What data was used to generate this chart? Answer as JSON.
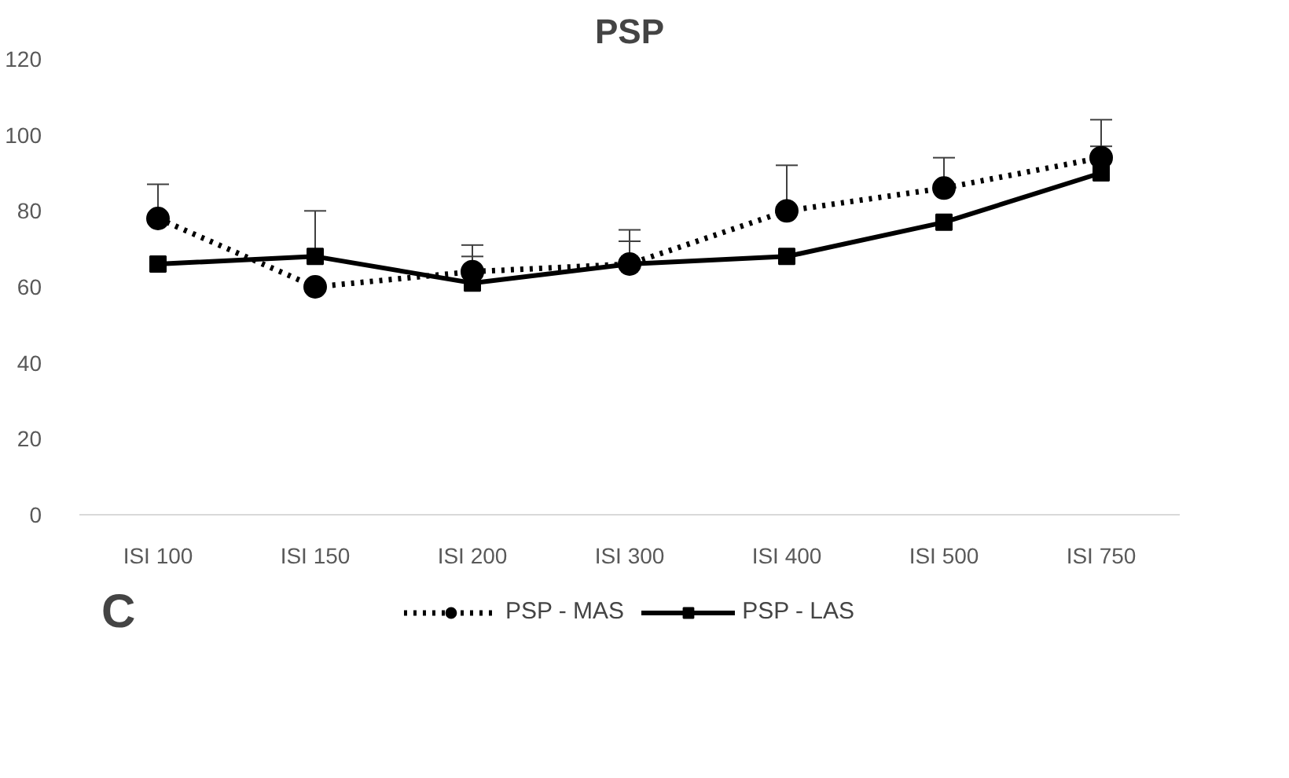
{
  "chart_data": {
    "type": "line",
    "title": "PSP",
    "categories": [
      "ISI 100",
      "ISI 150",
      "ISI 200",
      "ISI 300",
      "ISI 400",
      "ISI 500",
      "ISI 750"
    ],
    "series": [
      {
        "name": "PSP - MAS",
        "color": "#000000",
        "line_style": "dotted",
        "marker": "circle",
        "values": [
          78,
          60,
          64,
          66,
          80,
          86,
          94
        ],
        "errors": [
          [
            78,
            87
          ],
          null,
          [
            64,
            71
          ],
          [
            66,
            75
          ],
          [
            80,
            92
          ],
          [
            86,
            94
          ],
          [
            94,
            104
          ]
        ]
      },
      {
        "name": "PSP - LAS",
        "color": "#000000",
        "line_style": "solid",
        "marker": "square",
        "values": [
          66,
          68,
          61,
          66,
          68,
          77,
          90
        ],
        "errors": [
          null,
          [
            68,
            80
          ],
          [
            61,
            68
          ],
          [
            66,
            72
          ],
          null,
          null,
          [
            90,
            97
          ]
        ]
      }
    ],
    "ylim": [
      0,
      120
    ],
    "yticks": [
      0,
      20,
      40,
      60,
      80,
      100,
      120
    ],
    "grid": false,
    "legend": "bottom",
    "annotations": [
      "C"
    ]
  }
}
